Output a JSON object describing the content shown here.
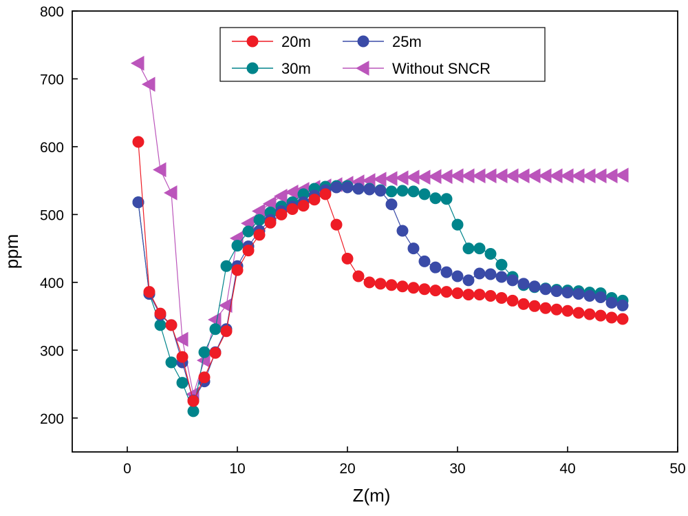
{
  "chart_data": {
    "type": "line",
    "title": "",
    "xlabel": "Z(m)",
    "ylabel": "ppm",
    "xlim": [
      -5,
      50
    ],
    "ylim": [
      150,
      800
    ],
    "xticks": [
      0,
      10,
      20,
      30,
      40,
      50
    ],
    "yticks": [
      200,
      300,
      400,
      500,
      600,
      700,
      800
    ],
    "legend_position": "top-center",
    "x": [
      1,
      2,
      3,
      4,
      5,
      6,
      7,
      8,
      9,
      10,
      11,
      12,
      13,
      14,
      15,
      16,
      17,
      18,
      19,
      20,
      21,
      22,
      23,
      24,
      25,
      26,
      27,
      28,
      29,
      30,
      31,
      32,
      33,
      34,
      35,
      36,
      37,
      38,
      39,
      40,
      41,
      42,
      43,
      44,
      45
    ],
    "series": [
      {
        "name": "20m",
        "color": "#ee1c25",
        "marker": "circle",
        "values": [
          607,
          386,
          354,
          337,
          290,
          225,
          260,
          296,
          328,
          418,
          447,
          470,
          488,
          500,
          508,
          513,
          522,
          530,
          485,
          435,
          409,
          400,
          398,
          396,
          394,
          392,
          390,
          388,
          386,
          384,
          382,
          382,
          380,
          377,
          373,
          368,
          365,
          362,
          360,
          358,
          355,
          353,
          351,
          348,
          346
        ]
      },
      {
        "name": "25m",
        "color": "#3a4ba7",
        "marker": "circle",
        "values": [
          518,
          383,
          352,
          337,
          282,
          226,
          254,
          297,
          331,
          424,
          453,
          476,
          492,
          505,
          512,
          518,
          528,
          536,
          540,
          540,
          538,
          537,
          535,
          515,
          476,
          450,
          431,
          422,
          415,
          409,
          403,
          413,
          412,
          408,
          403,
          398,
          394,
          390,
          387,
          385,
          383,
          380,
          378,
          370,
          366
        ]
      },
      {
        "name": "30m",
        "color": "#00848b",
        "marker": "circle",
        "values": [
          518,
          383,
          337,
          282,
          252,
          210,
          297,
          331,
          424,
          454,
          475,
          492,
          503,
          512,
          518,
          530,
          538,
          541,
          542,
          542,
          538,
          538,
          536,
          534,
          535,
          534,
          530,
          524,
          523,
          485,
          450,
          450,
          442,
          426,
          408,
          396,
          393,
          391,
          389,
          388,
          387,
          385,
          384,
          377,
          373
        ]
      },
      {
        "name": "Without SNCR",
        "color": "#bb55bb",
        "marker": "triangle-left",
        "values": [
          723,
          692,
          566,
          532,
          316,
          235,
          285,
          345,
          366,
          465,
          487,
          505,
          516,
          527,
          533,
          537,
          540,
          542,
          544,
          546,
          548,
          550,
          552,
          553,
          554,
          555,
          555,
          556,
          556,
          557,
          557,
          557,
          557,
          557,
          557,
          557,
          557,
          557,
          557,
          557,
          557,
          557,
          557,
          557,
          558
        ]
      }
    ]
  }
}
